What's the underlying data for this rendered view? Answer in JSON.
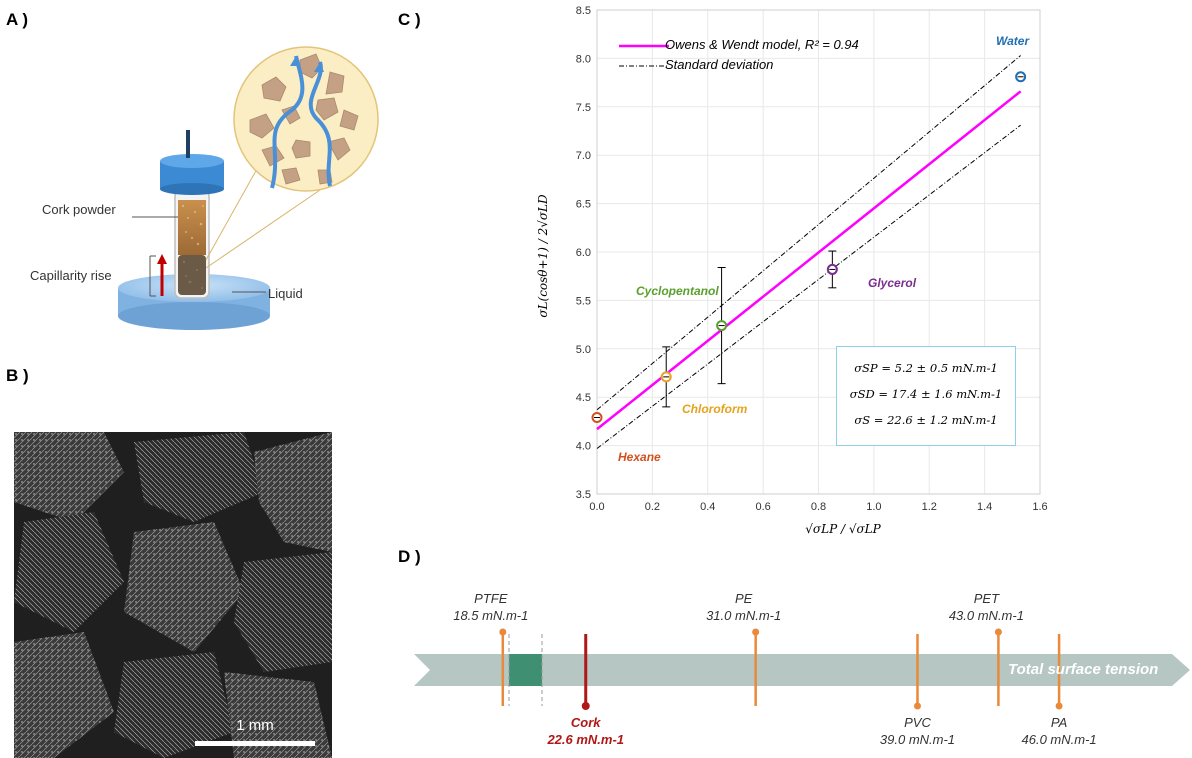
{
  "panels": {
    "a": {
      "label": "A )",
      "cork_powder": "Cork powder",
      "capillarity": "Capillarity rise",
      "liquid": "Liquid"
    },
    "b": {
      "label": "B )",
      "scale_bar": "1 mm"
    },
    "c": {
      "label": "C )"
    },
    "d": {
      "label": "D )"
    }
  },
  "chart_data": {
    "type": "scatter",
    "xlabel": "√σLP / √σLP",
    "ylabel": "σL(cosθ+1) / 2√σLD",
    "xlim": [
      0,
      1.6
    ],
    "ylim": [
      3.5,
      8.5
    ],
    "x_ticks": [
      "0.0",
      "0.2",
      "0.4",
      "0.6",
      "0.8",
      "1.0",
      "1.2",
      "1.4",
      "1.6"
    ],
    "y_ticks": [
      "3.5",
      "4.0",
      "4.5",
      "5.0",
      "5.5",
      "6.0",
      "6.5",
      "7.0",
      "7.5",
      "8.0",
      "8.5"
    ],
    "grid": true,
    "legend_position": "top-left",
    "legend": [
      {
        "label": "Owens & Wendt model, R² = 0.94",
        "style": "solid",
        "color": "#ff00ff"
      },
      {
        "label": "Standard deviation",
        "style": "dashdot",
        "color": "#000000"
      }
    ],
    "fit_line": {
      "x": [
        0,
        1.53
      ],
      "y": [
        4.17,
        7.66
      ],
      "color": "#ff00ff"
    },
    "std_upper": {
      "x": [
        0,
        1.53
      ],
      "y": [
        4.37,
        8.03
      ]
    },
    "std_lower": {
      "x": [
        0,
        1.53
      ],
      "y": [
        3.97,
        7.31
      ]
    },
    "points": [
      {
        "name": "Hexane",
        "x": 0.0,
        "y": 4.29,
        "err": 0.0,
        "color": "#d2501e"
      },
      {
        "name": "Chloroform",
        "x": 0.25,
        "y": 4.71,
        "err": 0.31,
        "color": "#e6a21e"
      },
      {
        "name": "Cyclopentanol",
        "x": 0.45,
        "y": 5.24,
        "err": 0.6,
        "color": "#5aa02c"
      },
      {
        "name": "Glycerol",
        "x": 0.85,
        "y": 5.82,
        "err": 0.19,
        "color": "#7b2d8f"
      },
      {
        "name": "Water",
        "x": 1.53,
        "y": 7.81,
        "err": 0.0,
        "color": "#1f6fb4"
      }
    ],
    "annotations": [
      "σSP = 5.2 ± 0.5 mN.m-1",
      "σSD = 17.4 ± 1.6 mN.m-1",
      "σS = 22.6 ± 1.2 mN.m-1"
    ]
  },
  "scale_d": {
    "arrow_label": "Total surface tension",
    "range": [
      15,
      50
    ],
    "materials": [
      {
        "name": "PTFE",
        "value": "18.5 mN.m-1",
        "v": 18.5,
        "side": "top"
      },
      {
        "name": "PE",
        "value": "31.0 mN.m-1",
        "v": 31.0,
        "side": "top"
      },
      {
        "name": "PET",
        "value": "43.0 mN.m-1",
        "v": 43.0,
        "side": "top"
      },
      {
        "name": "PVC",
        "value": "39.0 mN.m-1",
        "v": 39.0,
        "side": "bottom"
      },
      {
        "name": "PA",
        "value": "46.0 mN.m-1",
        "v": 46.0,
        "side": "bottom"
      }
    ],
    "cork": {
      "name": "Cork",
      "value": "22.6 mN.m-1",
      "v": 22.6
    }
  },
  "colors": {
    "magenta": "#ff00ff",
    "orange": "#e88a3a",
    "cork_red": "#b01818",
    "arrow": "#b5c6c3",
    "band": "#3f8f73"
  }
}
